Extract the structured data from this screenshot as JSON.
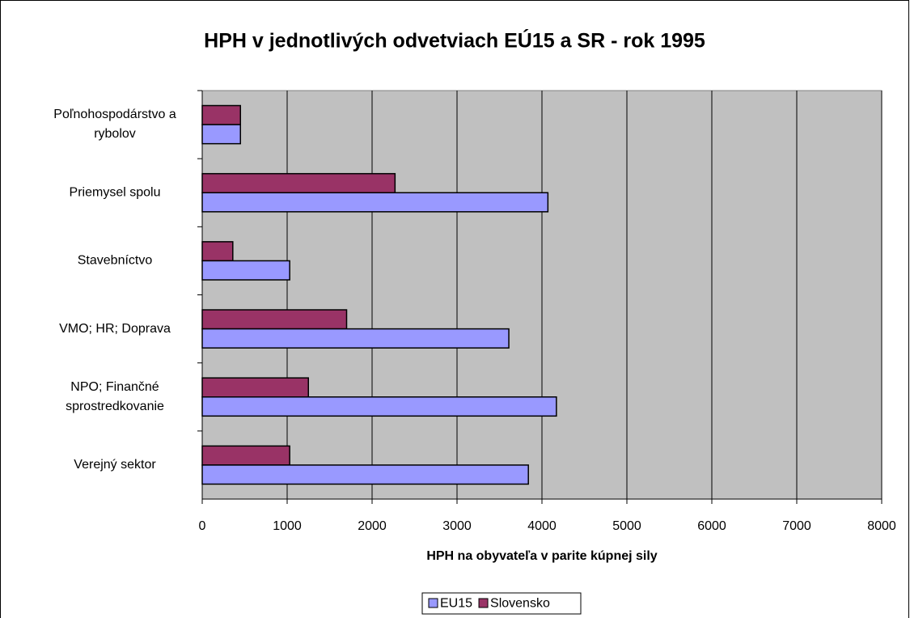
{
  "chart_data": {
    "type": "barh",
    "title": "HPH v jednotlivých odvetviach EÚ15 a SR - rok 1995",
    "x_label": "HPH na obyvateľa v parite kúpnej sily",
    "categories": [
      "Poľnohospodárstvo a\nrybolov",
      "Priemysel spolu",
      "Stavebníctvo",
      "VMO; HR; Doprava",
      "NPO; Finančné\nsprostredkovanie",
      "Verejný sektor"
    ],
    "series": [
      {
        "name": "EU15",
        "color": "#9999ff",
        "values": [
          450,
          4070,
          1030,
          3610,
          4170,
          3840
        ]
      },
      {
        "name": "Slovensko",
        "color": "#993366",
        "values": [
          450,
          2270,
          360,
          1700,
          1250,
          1030
        ]
      }
    ],
    "xlim": [
      0,
      8000
    ],
    "xticks": [
      0,
      1000,
      2000,
      3000,
      4000,
      5000,
      6000,
      7000,
      8000
    ],
    "grid": true,
    "legend": "bottom"
  }
}
